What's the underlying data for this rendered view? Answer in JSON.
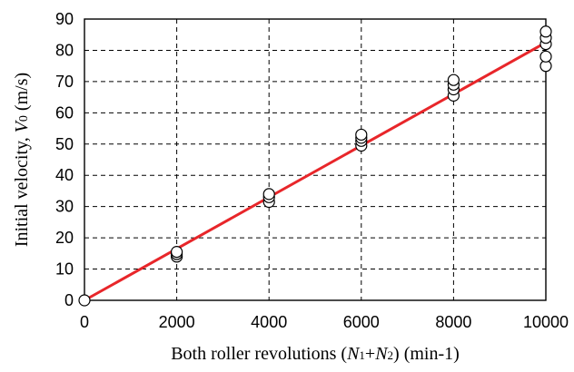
{
  "chart_data": {
    "type": "scatter",
    "xlabel_parts": {
      "prefix": "Both roller revolutions  (",
      "n1": "N",
      "n1_sub": "1",
      "plus": "+",
      "n2": "N",
      "n2_sub": "2",
      "suffix": ")  (min-1)"
    },
    "ylabel_parts": {
      "prefix": "Initial velocity,  ",
      "v": "V",
      "v_sub": "0",
      "suffix": "  (m/s)"
    },
    "xlim": [
      0,
      10000
    ],
    "ylim": [
      0,
      90
    ],
    "xticks": [
      0,
      2000,
      4000,
      6000,
      8000,
      10000
    ],
    "yticks": [
      0,
      10,
      20,
      30,
      40,
      50,
      60,
      70,
      80,
      90
    ],
    "grid": true,
    "series": [
      {
        "marker": "circle-open",
        "color": "#000000",
        "points": [
          [
            0,
            0
          ],
          [
            2000,
            14
          ],
          [
            2000,
            14.8
          ],
          [
            2000,
            15.5
          ],
          [
            4000,
            31.5
          ],
          [
            4000,
            33
          ],
          [
            4000,
            34
          ],
          [
            6000,
            49.5
          ],
          [
            6000,
            51
          ],
          [
            6000,
            52
          ],
          [
            6000,
            53
          ],
          [
            8000,
            65.5
          ],
          [
            8000,
            67.5
          ],
          [
            8000,
            69
          ],
          [
            8000,
            70.5
          ],
          [
            10000,
            75
          ],
          [
            10000,
            78
          ],
          [
            10000,
            82
          ],
          [
            10000,
            84
          ],
          [
            10000,
            86
          ]
        ]
      },
      {
        "type": "line",
        "color": "#e8262a",
        "points": [
          [
            0,
            0
          ],
          [
            10000,
            82.5
          ]
        ]
      }
    ]
  }
}
